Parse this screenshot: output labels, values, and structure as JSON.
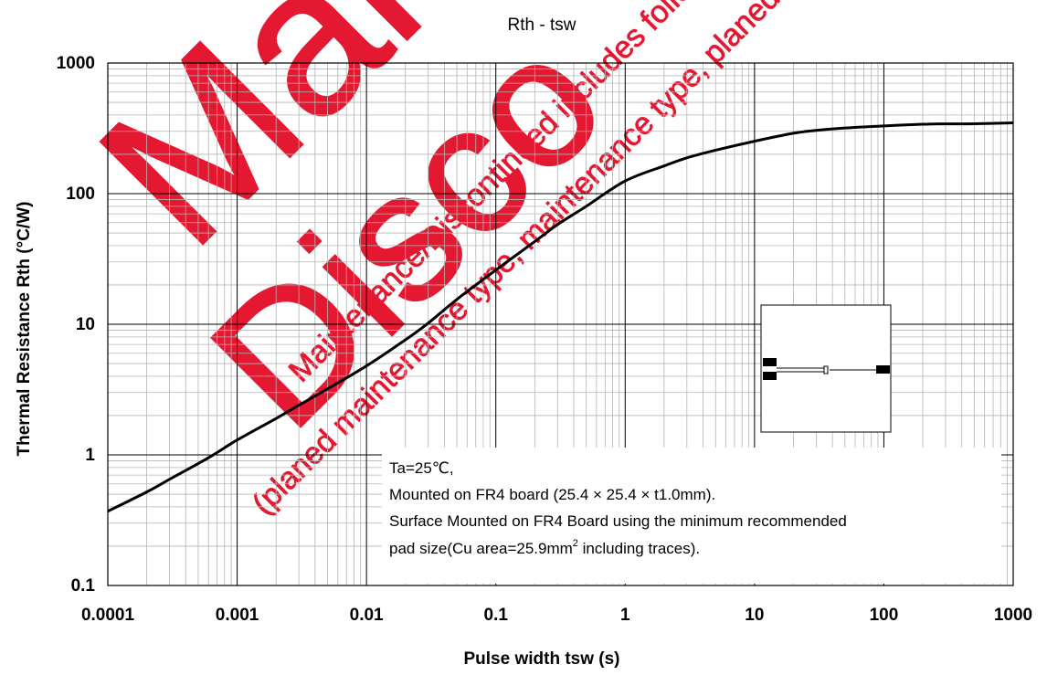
{
  "chart_data": {
    "type": "line",
    "title": "Rth - tsw",
    "xlabel": "Pulse width tsw (s)",
    "ylabel": "Thermal Resistance Rth (°C/W)",
    "xscale": "log",
    "yscale": "log",
    "xlim": [
      0.0001,
      1000
    ],
    "ylim": [
      0.1,
      1000
    ],
    "xticks": [
      "0.0001",
      "0.001",
      "0.01",
      "0.1",
      "1",
      "10",
      "100",
      "1000"
    ],
    "yticks": [
      "0.1",
      "1",
      "10",
      "100",
      "1000"
    ],
    "grid": true,
    "line_color": "#000000",
    "series": [
      {
        "x": [
          0.0001,
          0.0002,
          0.0003,
          0.0006,
          0.001,
          0.002,
          0.003,
          0.005,
          0.01,
          0.02,
          0.03,
          0.05,
          0.1,
          0.2,
          0.3,
          0.5,
          1,
          2,
          3,
          5,
          10,
          20,
          30,
          50,
          100,
          200,
          300,
          500,
          1000
        ],
        "y": [
          0.37,
          0.52,
          0.65,
          0.95,
          1.3,
          1.9,
          2.4,
          3.2,
          4.8,
          7.6,
          10.2,
          15.5,
          26,
          43,
          58,
          80,
          125,
          163,
          188,
          215,
          252,
          290,
          305,
          318,
          330,
          340,
          342,
          343,
          348
        ]
      }
    ],
    "annotation": {
      "line1": "Ta=25℃,",
      "line2": "Mounted on FR4 board  (25.4 × 25.4 × t1.0mm).",
      "line3": "Surface Mounted on FR4 Board using the minimum recommended",
      "line4_a": "pad size(Cu area=25.9mm",
      "line4_sup": "2",
      "line4_b": " including traces)."
    },
    "watermark": {
      "big1": "Mai",
      "big2": "Disco",
      "small1": "Maintenance/Discontinued includes following",
      "small2": "(planed maintenance type, maintenance type, planed di",
      "color": "#e3001b"
    }
  }
}
